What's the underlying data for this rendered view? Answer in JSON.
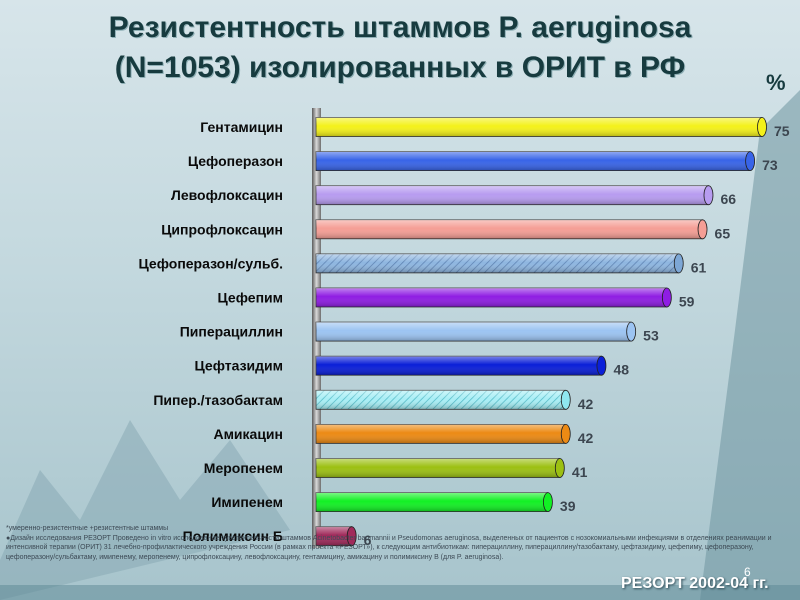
{
  "title_line1": "Резистентность  штаммов P. aeruginosa",
  "title_line2": "(N=1053)  изолированных в ОРИТ в   РФ",
  "unit_label": "%",
  "footnote_line1": "*умеренно-резистентные +резистентные штаммы",
  "footnote_line2": "●Дизайн исследования РЕЗОРТ Проведено in vitro исследование чувствительности штаммов Acinetobacter baumannii и Pseudomonas aeruginosa, выделенных от пациентов с нозокомиальными инфекциями в отделениях реанимации и интенсивной терапии (ОРИТ) 31 лечебно-профилактического учреждения России (в рамках проекта «РЕЗОРТ»), к следующим антибиотикам: пиперациллину, пиперациллину/тазобактаму, цефтазидиму, цефепиму, цефоперазону, цефоперазону/сульбактаму, имипенему, меропенему, ципрофлоксацину, левофлоксацину, гентамицину, амикацину и полимиксину В (для P. aeruginosa).",
  "source_label": "РЕЗОРТ 2002-04 гг.",
  "page_number": "6",
  "chart_data": {
    "type": "bar",
    "orientation": "horizontal",
    "categories": [
      "Гентамицин",
      "Цефоперазон",
      "Левофлоксацин",
      "Ципрофлоксацин",
      "Цефоперазон/сульб.",
      "Цефепим",
      "Пиперациллин",
      "Цефтазидим",
      "Пипер./тазобактам",
      "Амикацин",
      "Меропенем",
      "Имипенем",
      "Полимиксин Б"
    ],
    "values": [
      75,
      73,
      66,
      65,
      61,
      59,
      53,
      48,
      42,
      42,
      41,
      39,
      6
    ],
    "colors": [
      "#f4f11a",
      "#3864e8",
      "#b79cf0",
      "#f59e95",
      "#7da7d6",
      "#8f1de3",
      "#9cc4f2",
      "#0a1fd8",
      "#8fe7f0",
      "#ec8a14",
      "#9cc012",
      "#12f024",
      "#a02a5b"
    ],
    "hatched": [
      false,
      false,
      false,
      false,
      true,
      false,
      false,
      false,
      true,
      false,
      false,
      false,
      false
    ],
    "xlim": [
      0,
      75
    ],
    "legend": "none",
    "grid": false
  }
}
